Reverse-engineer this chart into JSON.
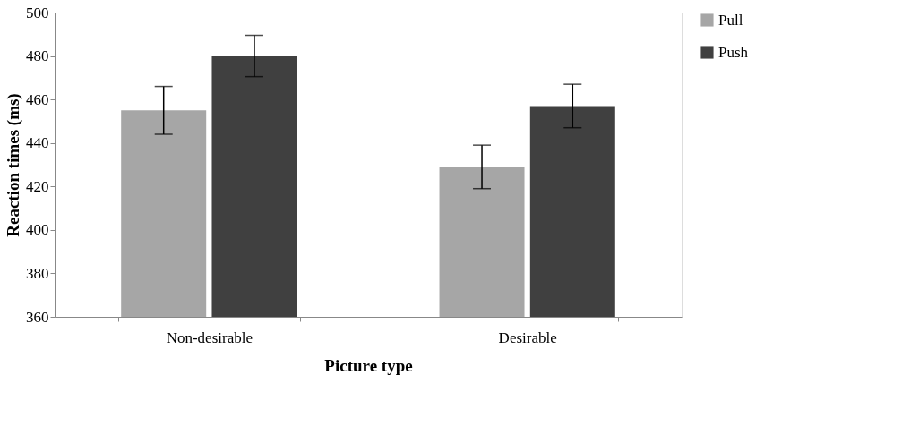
{
  "chart_data": {
    "type": "bar",
    "xlabel": "Picture type",
    "ylabel": "Reaction times (ms)",
    "categories": [
      "Non-desirable",
      "Desirable"
    ],
    "series": [
      {
        "name": "Pull",
        "color": "#a6a6a6",
        "values": [
          455,
          429
        ],
        "errors": [
          11,
          10
        ]
      },
      {
        "name": "Push",
        "color": "#404040",
        "values": [
          480,
          457
        ],
        "errors": [
          9.5,
          10
        ]
      }
    ],
    "ylim": [
      360,
      500
    ],
    "yticks": [
      360,
      380,
      400,
      420,
      440,
      460,
      480,
      500
    ],
    "grid": false,
    "legend": "right"
  }
}
